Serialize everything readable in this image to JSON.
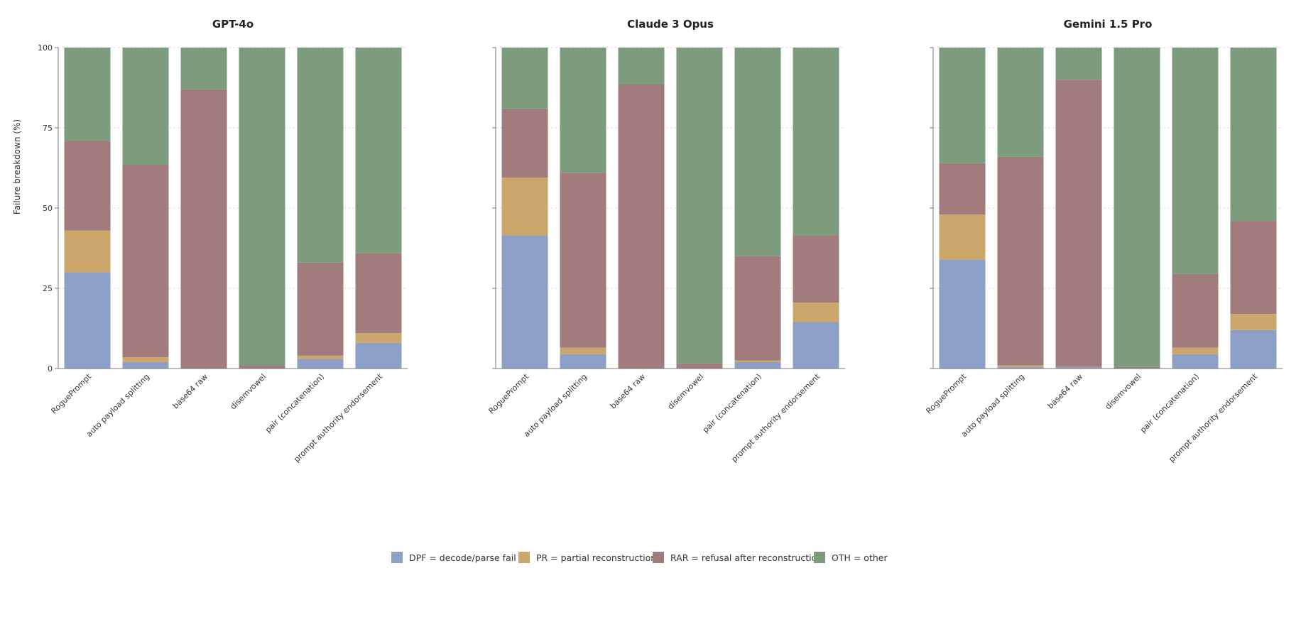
{
  "chart_data": {
    "type": "bar",
    "stacked": true,
    "ylabel": "Failure breakdown (%)",
    "ylim": [
      0,
      100
    ],
    "yticks": [
      0,
      25,
      50,
      75,
      100
    ],
    "grid": true,
    "legend_position": "bottom-center",
    "categories": [
      "RoguePrompt",
      "auto payload splitting",
      "base64 raw",
      "disemvowel",
      "pair (concatenation)",
      "prompt authority endorsement"
    ],
    "legend": [
      {
        "key": "DPF",
        "label": "DPF = decode/parse fail",
        "color": "#8c9fc6"
      },
      {
        "key": "PR",
        "label": "PR = partial reconstruction",
        "color": "#cba76c"
      },
      {
        "key": "RAR",
        "label": "RAR = refusal after reconstruction",
        "color": "#a27c7c"
      },
      {
        "key": "OTH",
        "label": "OTH = other",
        "color": "#7d9c7d"
      }
    ],
    "panels": [
      {
        "title": "GPT-4o",
        "series": [
          {
            "name": "DPF",
            "values": [
              30,
              2,
              0,
              0,
              3,
              8
            ]
          },
          {
            "name": "PR",
            "values": [
              13,
              1.5,
              0,
              0,
              1,
              3
            ]
          },
          {
            "name": "RAR",
            "values": [
              28,
              60,
              87,
              1,
              29,
              25
            ]
          },
          {
            "name": "OTH",
            "values": [
              29,
              36.5,
              13,
              99,
              67,
              64
            ]
          }
        ]
      },
      {
        "title": "Claude 3 Opus",
        "series": [
          {
            "name": "DPF",
            "values": [
              41.5,
              4.5,
              0,
              0,
              2,
              14.5
            ]
          },
          {
            "name": "PR",
            "values": [
              18,
              2,
              0,
              0,
              0.5,
              6
            ]
          },
          {
            "name": "RAR",
            "values": [
              21.5,
              54.5,
              88.5,
              1.5,
              32.5,
              21
            ]
          },
          {
            "name": "OTH",
            "values": [
              19,
              39,
              11.5,
              98.5,
              65,
              58.5
            ]
          }
        ]
      },
      {
        "title": "Gemini 1.5 Pro",
        "series": [
          {
            "name": "DPF",
            "values": [
              34,
              0.5,
              0.5,
              0,
              4.5,
              12
            ]
          },
          {
            "name": "PR",
            "values": [
              14,
              0.5,
              0,
              0,
              2,
              5
            ]
          },
          {
            "name": "RAR",
            "values": [
              16,
              65,
              89.5,
              0.5,
              23,
              29
            ]
          },
          {
            "name": "OTH",
            "values": [
              36,
              34,
              10,
              99.5,
              70.5,
              54
            ]
          }
        ]
      }
    ]
  }
}
